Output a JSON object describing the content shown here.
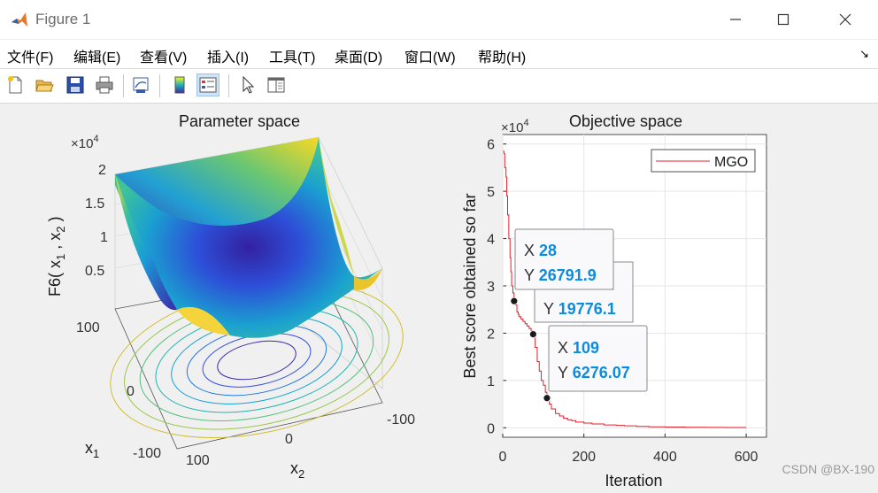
{
  "window": {
    "title": "Figure 1"
  },
  "menu": [
    "文件(F)",
    "编辑(E)",
    "查看(V)",
    "插入(I)",
    "工具(T)",
    "桌面(D)",
    "窗口(W)",
    "帮助(H)"
  ],
  "toolbar": [
    "new-figure",
    "open-file",
    "save",
    "print",
    "link-plot",
    "colorbar",
    "legend",
    "select-pointer",
    "property-editor"
  ],
  "colors": {
    "line": "#e0202a",
    "datatip_value": "#0b8ddf",
    "accent": "#0072bd"
  },
  "left_axes": {
    "title": "Parameter space",
    "zlabel": "F6( x",
    "zlabel_sub1": "1",
    "zlabel_mid": " , x",
    "zlabel_sub2": "2",
    "zlabel_end": " )",
    "zexp_base": "×10",
    "zexp_pow": "4",
    "zticks": [
      "2",
      "1.5",
      "1",
      "0.5"
    ],
    "x1label": "x",
    "x1sub": "1",
    "x2label": "x",
    "x2sub": "2",
    "x1ticks": [
      "100",
      "0",
      "-100"
    ],
    "x2ticks": [
      "100",
      "0",
      "-100"
    ]
  },
  "chart_data": {
    "type": "line",
    "title": "Objective space",
    "xlabel": "Iteration",
    "ylabel": "Best score obtained so far",
    "y_exponent": "×10",
    "y_exponent_pow": "4",
    "xlim": [
      0,
      650
    ],
    "ylim": [
      -0.2,
      6.2
    ],
    "xticks": [
      "0",
      "200",
      "400",
      "600"
    ],
    "yticks": [
      "0",
      "1",
      "2",
      "3",
      "4",
      "5",
      "6"
    ],
    "grid": true,
    "legend_position": "top-right",
    "series": [
      {
        "name": "MGO",
        "color": "#e0202a",
        "x": [
          1,
          3,
          5,
          8,
          10,
          12,
          15,
          18,
          20,
          22,
          25,
          28,
          32,
          35,
          38,
          40,
          45,
          50,
          55,
          60,
          65,
          70,
          75,
          80,
          85,
          90,
          95,
          100,
          105,
          109,
          115,
          120,
          130,
          140,
          150,
          160,
          170,
          180,
          200,
          220,
          250,
          280,
          300,
          330,
          360,
          400,
          450,
          500,
          550,
          600
        ],
        "y": [
          5.85,
          5.8,
          5.5,
          5.3,
          4.9,
          4.5,
          4.0,
          3.6,
          3.3,
          3.0,
          2.85,
          2.68,
          2.6,
          2.45,
          2.4,
          2.35,
          2.3,
          2.25,
          2.2,
          2.15,
          2.1,
          2.05,
          1.98,
          1.7,
          1.4,
          1.2,
          1.0,
          0.9,
          0.75,
          0.63,
          0.5,
          0.4,
          0.3,
          0.25,
          0.2,
          0.17,
          0.15,
          0.12,
          0.1,
          0.08,
          0.06,
          0.05,
          0.04,
          0.03,
          0.02,
          0.015,
          0.01,
          0.008,
          0.005,
          0.005
        ]
      }
    ],
    "datatips": [
      {
        "x_label": "X",
        "x_value": "28",
        "y_label": "Y",
        "y_value": "26791.9",
        "x": 28,
        "y": 2.679
      },
      {
        "x_label": "X",
        "x_value": "",
        "y_label": "Y",
        "y_value": "19776.1",
        "x": 75,
        "y": 1.978
      },
      {
        "x_label": "X",
        "x_value": "109",
        "y_label": "Y",
        "y_value": "6276.07",
        "x": 109,
        "y": 0.628
      }
    ]
  },
  "watermark": "CSDN @BX-190"
}
